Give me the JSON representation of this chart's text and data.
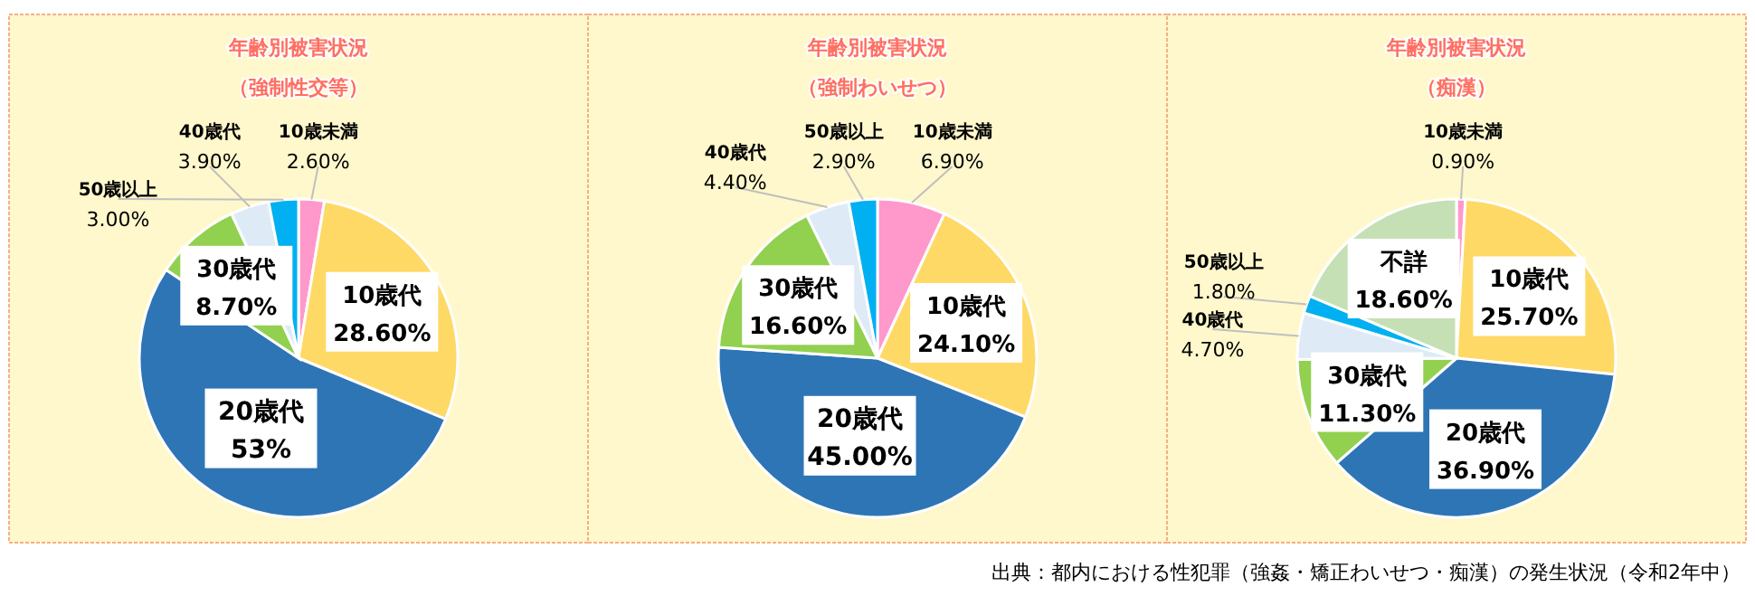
{
  "chart_data": [
    {
      "type": "pie",
      "title": "年齢別被害状況",
      "subtitle": "（強制性交等）",
      "categories": [
        "10歳未満",
        "10歳代",
        "20歳代",
        "30歳代",
        "40歳代",
        "50歳以上"
      ],
      "values": [
        2.6,
        28.6,
        53,
        8.7,
        3.9,
        3.0
      ],
      "value_labels": [
        "2.60%",
        "28.60%",
        "53%",
        "8.70%",
        "3.90%",
        "3.00%"
      ],
      "colors": [
        "#ff99cc",
        "#ffd966",
        "#2e75b6",
        "#92d050",
        "#deebf7",
        "#00b0f0"
      ]
    },
    {
      "type": "pie",
      "title": "年齢別被害状況",
      "subtitle": "（強制わいせつ）",
      "categories": [
        "10歳未満",
        "10歳代",
        "20歳代",
        "30歳代",
        "40歳代",
        "50歳以上"
      ],
      "values": [
        6.9,
        24.1,
        45.0,
        16.6,
        4.4,
        2.9
      ],
      "value_labels": [
        "6.90%",
        "24.10%",
        "45.00%",
        "16.60%",
        "4.40%",
        "2.90%"
      ],
      "colors": [
        "#ff99cc",
        "#ffd966",
        "#2e75b6",
        "#92d050",
        "#deebf7",
        "#00b0f0"
      ]
    },
    {
      "type": "pie",
      "title": "年齢別被害状況",
      "subtitle": "（痴漢）",
      "categories": [
        "10歳未満",
        "10歳代",
        "20歳代",
        "30歳代",
        "40歳代",
        "50歳以上",
        "不詳"
      ],
      "values": [
        0.9,
        25.7,
        36.9,
        11.3,
        4.7,
        1.8,
        18.6
      ],
      "value_labels": [
        "0.90%",
        "25.70%",
        "36.90%",
        "11.30%",
        "4.70%",
        "1.80%",
        "18.60%"
      ],
      "colors": [
        "#ff99cc",
        "#ffd966",
        "#2e75b6",
        "#92d050",
        "#deebf7",
        "#00b0f0",
        "#c5e0b4"
      ],
      "annotations": [
        "出典：都内における性犯罪（強姦・矯正わいせつ・痴漢）の発生状況（令和2年中）"
      ]
    }
  ]
}
